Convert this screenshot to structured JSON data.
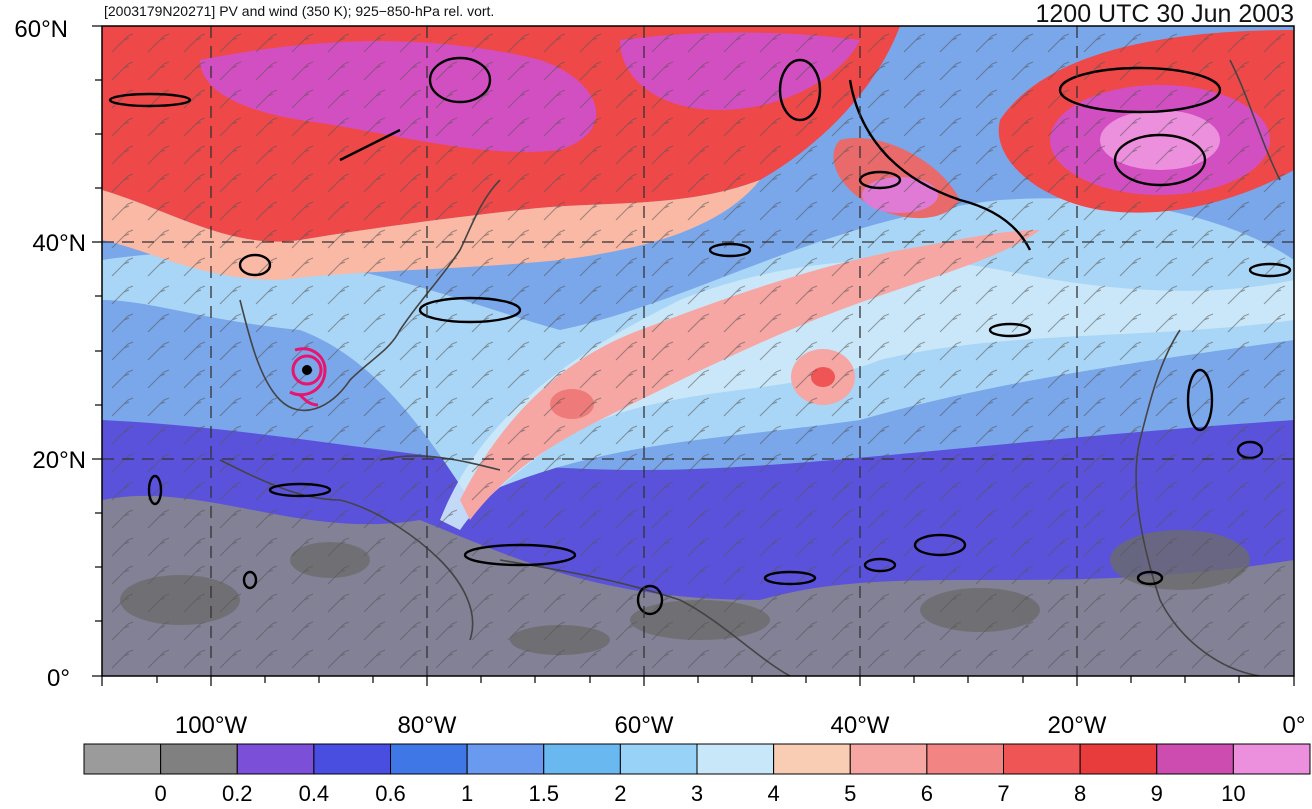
{
  "header": {
    "subtitle": "[2003179N20271] PV and wind (350 K); 925−850-hPa rel. vort.",
    "datetime": "1200 UTC 30 Jun 2003"
  },
  "map": {
    "lat_labels": [
      "60°N",
      "40°N",
      "20°N",
      "0°"
    ],
    "lon_labels": [
      "100°W",
      "80°W",
      "60°W",
      "40°W",
      "20°W",
      "0°"
    ],
    "field_colors": {
      "background_pv": "#7aa6ea",
      "high_pv": "#ef4848",
      "very_high_pv": "#e07bd5",
      "low_pv": "#8a8a8a",
      "contour": "#000000",
      "storm_track": "#e8146e",
      "coast": "#4a4a4a"
    }
  },
  "colorbar": {
    "colors": [
      "#9b9b9b",
      "#808080",
      "#7b4fd8",
      "#4a4ee0",
      "#3f78e6",
      "#6a9af0",
      "#6ab8f0",
      "#98d2f6",
      "#c8e8fa",
      "#f9cdb4",
      "#f6a6a3",
      "#f28483",
      "#ef5555",
      "#e83b3b",
      "#cc4cb0",
      "#ec90de"
    ],
    "labels": [
      "0",
      "0.2",
      "0.4",
      "0.6",
      "1",
      "1.5",
      "2",
      "3",
      "4",
      "5",
      "6",
      "7",
      "8",
      "9",
      "10"
    ]
  }
}
